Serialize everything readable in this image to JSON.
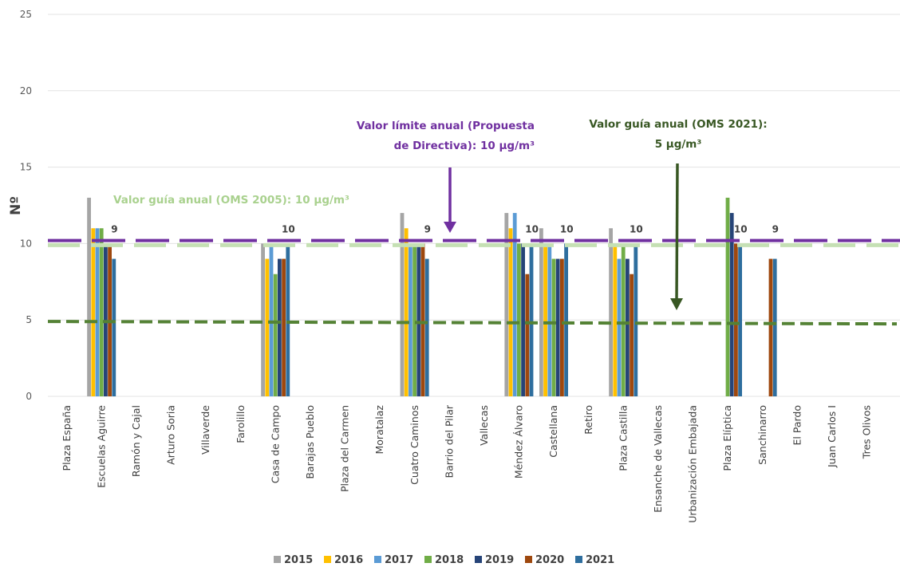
{
  "chart_data": {
    "type": "bar",
    "ylabel": "Nº",
    "ylim": [
      0,
      25
    ],
    "yticks": [
      0,
      5,
      10,
      15,
      20,
      25
    ],
    "grid": true,
    "legend_position": "bottom",
    "categories": [
      "Plaza España",
      "Escuelas Aguirre",
      "Ramón y Cajal",
      "Arturo Soria",
      "Villaverde",
      "Farolillo",
      "Casa de Campo",
      "Barajas Pueblo",
      "Plaza del Carmen",
      "Moratalaz",
      "Cuatro Caminos",
      "Barrio del Pilar",
      "Vallecas",
      "Méndez Álvaro",
      "Castellana",
      "Retiro",
      "Plaza Castilla",
      "Ensanche de Vallecas",
      "Urbanización Embajada",
      "Plaza Elíptica",
      "Sanchinarro",
      "El Pardo",
      "Juan Carlos I",
      "Tres Olivos"
    ],
    "series": [
      {
        "name": "2015",
        "color": "#A5A5A5",
        "values": [
          null,
          13,
          null,
          null,
          null,
          null,
          10,
          null,
          null,
          null,
          12,
          null,
          null,
          12,
          11,
          null,
          11,
          null,
          null,
          null,
          null,
          null,
          null,
          null
        ]
      },
      {
        "name": "2016",
        "color": "#FFC000",
        "values": [
          null,
          11,
          null,
          null,
          null,
          null,
          9,
          null,
          null,
          null,
          11,
          null,
          null,
          11,
          10,
          null,
          10,
          null,
          null,
          null,
          null,
          null,
          null,
          null
        ]
      },
      {
        "name": "2017",
        "color": "#5B9BD5",
        "values": [
          null,
          11,
          null,
          null,
          null,
          null,
          10,
          null,
          null,
          null,
          10,
          null,
          null,
          12,
          10,
          null,
          9,
          null,
          null,
          null,
          null,
          null,
          null,
          null
        ]
      },
      {
        "name": "2018",
        "color": "#70AD47",
        "values": [
          null,
          11,
          null,
          null,
          null,
          null,
          8,
          null,
          null,
          null,
          10,
          null,
          null,
          10,
          9,
          null,
          10,
          null,
          null,
          13,
          null,
          null,
          null,
          null
        ]
      },
      {
        "name": "2019",
        "color": "#264478",
        "values": [
          null,
          10,
          null,
          null,
          null,
          null,
          9,
          null,
          null,
          null,
          10,
          null,
          null,
          10,
          9,
          null,
          9,
          null,
          null,
          12,
          null,
          null,
          null,
          null
        ]
      },
      {
        "name": "2020",
        "color": "#9E480E",
        "values": [
          null,
          10,
          null,
          null,
          null,
          null,
          9,
          null,
          null,
          null,
          10,
          null,
          null,
          8,
          9,
          null,
          8,
          null,
          null,
          10,
          9,
          null,
          null,
          null
        ]
      },
      {
        "name": "2021",
        "color": "#2E6E9E",
        "values": [
          null,
          9,
          null,
          null,
          null,
          null,
          10,
          null,
          null,
          null,
          9,
          null,
          null,
          10,
          10,
          null,
          10,
          null,
          null,
          10,
          9,
          null,
          null,
          null
        ]
      }
    ],
    "data_labels": [
      {
        "category_index": 1,
        "text": "9"
      },
      {
        "category_index": 6,
        "text": "10"
      },
      {
        "category_index": 10,
        "text": "9"
      },
      {
        "category_index": 13,
        "text": "10"
      },
      {
        "category_index": 14,
        "text": "10"
      },
      {
        "category_index": 16,
        "text": "10"
      },
      {
        "category_index": 19,
        "text": "10"
      },
      {
        "category_index": 20,
        "text": "9"
      }
    ],
    "reference_lines": [
      {
        "value": 10,
        "color": "#C5E0B4"
      },
      {
        "value": 10.2,
        "color": "#7030A0"
      },
      {
        "value": 4.9,
        "color": "#548235"
      }
    ],
    "annotations": [
      {
        "color": "#A9D18E",
        "lines": [
          "Valor guía anual (OMS 2005): 10 µg/m³"
        ]
      },
      {
        "color": "#7030A0",
        "lines": [
          "Valor límite anual (Propuesta",
          "de Directiva): 10 µg/m³"
        ]
      },
      {
        "color": "#385723",
        "lines": [
          "Valor guía anual (OMS 2021):",
          "5 µg/m³"
        ]
      }
    ]
  }
}
